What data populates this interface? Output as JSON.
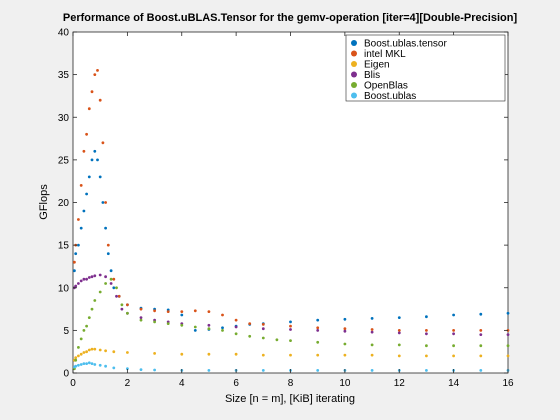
{
  "chart_data": {
    "type": "scatter",
    "title": "Performance of Boost.uBLAS.Tensor for the gemv-operation [iter=4][Double-Precision]",
    "xlabel": "Size [n = m], [KiB] iterating",
    "ylabel": "GFlops",
    "xlim": [
      0,
      16
    ],
    "ylim": [
      0,
      40
    ],
    "xticks": [
      0,
      2,
      4,
      6,
      8,
      10,
      12,
      14,
      16
    ],
    "yticks": [
      0,
      5,
      10,
      15,
      20,
      25,
      30,
      35,
      40
    ],
    "grid": false,
    "legend_position": "top-right",
    "series": [
      {
        "name": "Boost.ublas.tensor",
        "color": "#0072BD",
        "points": [
          [
            0.05,
            12
          ],
          [
            0.1,
            14
          ],
          [
            0.2,
            15
          ],
          [
            0.3,
            17
          ],
          [
            0.4,
            19
          ],
          [
            0.5,
            21
          ],
          [
            0.6,
            23
          ],
          [
            0.7,
            25
          ],
          [
            0.8,
            26
          ],
          [
            0.9,
            25
          ],
          [
            1.0,
            23
          ],
          [
            1.1,
            20
          ],
          [
            1.2,
            17
          ],
          [
            1.3,
            14
          ],
          [
            1.4,
            12
          ],
          [
            1.5,
            10
          ],
          [
            1.7,
            9
          ],
          [
            2.0,
            8
          ],
          [
            2.5,
            7.6
          ],
          [
            3.0,
            7.5
          ],
          [
            3.5,
            7.4
          ],
          [
            4.0,
            6.8
          ],
          [
            4.5,
            5
          ],
          [
            5.0,
            5.1
          ],
          [
            5.5,
            5.3
          ],
          [
            6.0,
            5.5
          ],
          [
            6.5,
            5.7
          ],
          [
            7.0,
            5.8
          ],
          [
            8.0,
            6.0
          ],
          [
            9.0,
            6.2
          ],
          [
            10.0,
            6.3
          ],
          [
            11.0,
            6.4
          ],
          [
            12.0,
            6.5
          ],
          [
            13.0,
            6.6
          ],
          [
            14.0,
            6.8
          ],
          [
            15.0,
            6.9
          ],
          [
            16.0,
            7.0
          ]
        ]
      },
      {
        "name": "intel MKL",
        "color": "#D95319",
        "points": [
          [
            0.05,
            13
          ],
          [
            0.1,
            15
          ],
          [
            0.2,
            18
          ],
          [
            0.3,
            22
          ],
          [
            0.4,
            26
          ],
          [
            0.5,
            28
          ],
          [
            0.6,
            31
          ],
          [
            0.7,
            33
          ],
          [
            0.8,
            35
          ],
          [
            0.9,
            35.5
          ],
          [
            1.0,
            32
          ],
          [
            1.1,
            27
          ],
          [
            1.2,
            20
          ],
          [
            1.3,
            15
          ],
          [
            1.5,
            11
          ],
          [
            1.7,
            9
          ],
          [
            2.0,
            8
          ],
          [
            2.5,
            7.5
          ],
          [
            3.0,
            7.3
          ],
          [
            3.5,
            7.2
          ],
          [
            4.0,
            7.2
          ],
          [
            4.5,
            7.3
          ],
          [
            5.0,
            7.2
          ],
          [
            5.5,
            6.8
          ],
          [
            6.0,
            6.2
          ],
          [
            6.5,
            5.8
          ],
          [
            7.0,
            5.7
          ],
          [
            8.0,
            5.5
          ],
          [
            9.0,
            5.3
          ],
          [
            10.0,
            5.2
          ],
          [
            11.0,
            5.1
          ],
          [
            12.0,
            5.0
          ],
          [
            13.0,
            5.0
          ],
          [
            14.0,
            5.0
          ],
          [
            15.0,
            5.0
          ],
          [
            16.0,
            5.0
          ]
        ]
      },
      {
        "name": "Eigen",
        "color": "#EDB120",
        "points": [
          [
            0.05,
            1.5
          ],
          [
            0.1,
            1.8
          ],
          [
            0.2,
            2.0
          ],
          [
            0.3,
            2.2
          ],
          [
            0.4,
            2.4
          ],
          [
            0.5,
            2.5
          ],
          [
            0.6,
            2.7
          ],
          [
            0.7,
            2.8
          ],
          [
            0.8,
            2.8
          ],
          [
            1.0,
            2.7
          ],
          [
            1.2,
            2.6
          ],
          [
            1.5,
            2.5
          ],
          [
            2.0,
            2.4
          ],
          [
            3.0,
            2.3
          ],
          [
            4.0,
            2.2
          ],
          [
            5.0,
            2.2
          ],
          [
            6.0,
            2.2
          ],
          [
            7.0,
            2.1
          ],
          [
            8.0,
            2.1
          ],
          [
            9.0,
            2.1
          ],
          [
            10.0,
            2.1
          ],
          [
            11.0,
            2.1
          ],
          [
            12.0,
            2.0
          ],
          [
            13.0,
            2.0
          ],
          [
            14.0,
            2.0
          ],
          [
            15.0,
            2.0
          ],
          [
            16.0,
            2.0
          ]
        ]
      },
      {
        "name": "Blis",
        "color": "#7E2F8E",
        "points": [
          [
            0.05,
            10
          ],
          [
            0.1,
            10.2
          ],
          [
            0.2,
            10.5
          ],
          [
            0.3,
            10.8
          ],
          [
            0.4,
            11
          ],
          [
            0.5,
            11
          ],
          [
            0.6,
            11.2
          ],
          [
            0.7,
            11.3
          ],
          [
            0.8,
            11.4
          ],
          [
            1.0,
            11.5
          ],
          [
            1.2,
            11.3
          ],
          [
            1.4,
            10.5
          ],
          [
            1.6,
            9
          ],
          [
            1.8,
            7.5
          ],
          [
            2.0,
            7
          ],
          [
            2.5,
            6.5
          ],
          [
            3.0,
            6.2
          ],
          [
            3.5,
            6.0
          ],
          [
            4.0,
            5.8
          ],
          [
            5.0,
            5.6
          ],
          [
            6.0,
            5.4
          ],
          [
            7.0,
            5.2
          ],
          [
            8.0,
            5.1
          ],
          [
            9.0,
            5.0
          ],
          [
            10.0,
            4.9
          ],
          [
            11.0,
            4.8
          ],
          [
            12.0,
            4.7
          ],
          [
            13.0,
            4.6
          ],
          [
            14.0,
            4.6
          ],
          [
            15.0,
            4.5
          ],
          [
            16.0,
            4.5
          ]
        ]
      },
      {
        "name": "OpenBlas",
        "color": "#77AC30",
        "points": [
          [
            0.05,
            0.5
          ],
          [
            0.1,
            1.5
          ],
          [
            0.2,
            3
          ],
          [
            0.3,
            4
          ],
          [
            0.4,
            5
          ],
          [
            0.5,
            5.5
          ],
          [
            0.6,
            6.5
          ],
          [
            0.7,
            7.5
          ],
          [
            0.8,
            8.5
          ],
          [
            1.0,
            9.5
          ],
          [
            1.2,
            10.5
          ],
          [
            1.4,
            11
          ],
          [
            1.6,
            10
          ],
          [
            1.8,
            8
          ],
          [
            2.0,
            7
          ],
          [
            2.5,
            6.2
          ],
          [
            3.0,
            6
          ],
          [
            3.5,
            5.8
          ],
          [
            4.0,
            5.6
          ],
          [
            4.5,
            5.4
          ],
          [
            5.0,
            5.2
          ],
          [
            5.5,
            5
          ],
          [
            6.0,
            4.6
          ],
          [
            6.5,
            4.3
          ],
          [
            7.0,
            4.1
          ],
          [
            7.5,
            3.9
          ],
          [
            8.0,
            3.8
          ],
          [
            9.0,
            3.6
          ],
          [
            10.0,
            3.4
          ],
          [
            11.0,
            3.3
          ],
          [
            12.0,
            3.3
          ],
          [
            13.0,
            3.2
          ],
          [
            14.0,
            3.2
          ],
          [
            15.0,
            3.2
          ],
          [
            16.0,
            3.2
          ]
        ]
      },
      {
        "name": "Boost.ublas",
        "color": "#4DBEEE",
        "points": [
          [
            0.05,
            0.7
          ],
          [
            0.1,
            0.8
          ],
          [
            0.2,
            0.9
          ],
          [
            0.3,
            1.0
          ],
          [
            0.4,
            1.1
          ],
          [
            0.5,
            1.1
          ],
          [
            0.6,
            1.2
          ],
          [
            0.7,
            1.1
          ],
          [
            0.8,
            1.0
          ],
          [
            1.0,
            0.9
          ],
          [
            1.2,
            0.8
          ],
          [
            1.5,
            0.6
          ],
          [
            2.0,
            0.5
          ],
          [
            2.5,
            0.4
          ],
          [
            3.0,
            0.35
          ],
          [
            4.0,
            0.3
          ],
          [
            5.0,
            0.3
          ],
          [
            6.0,
            0.3
          ],
          [
            7.0,
            0.3
          ],
          [
            8.0,
            0.3
          ],
          [
            9.0,
            0.3
          ],
          [
            10.0,
            0.3
          ],
          [
            11.0,
            0.3
          ],
          [
            12.0,
            0.3
          ],
          [
            13.0,
            0.3
          ],
          [
            14.0,
            0.3
          ],
          [
            15.0,
            0.3
          ],
          [
            16.0,
            0.3
          ]
        ]
      }
    ]
  }
}
